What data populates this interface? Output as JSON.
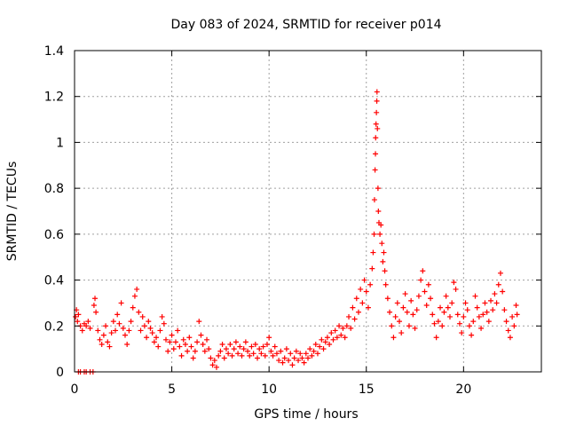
{
  "chart_data": {
    "type": "scatter",
    "title": "Day 083 of 2024, SRMTID for receiver p014",
    "xlabel": "GPS time / hours",
    "ylabel": "SRMTID / TECUs",
    "xlim": [
      0,
      24
    ],
    "ylim": [
      0,
      1.4
    ],
    "xticks": [
      0,
      5,
      10,
      15,
      20
    ],
    "xtick_labels": [
      "0",
      "5",
      "10",
      "15",
      "20"
    ],
    "yticks": [
      0,
      0.2,
      0.4,
      0.6,
      0.8,
      1.0,
      1.2,
      1.4
    ],
    "ytick_labels": [
      "0",
      "0.2",
      "0.4",
      "0.6",
      "0.8",
      "1",
      "1.2",
      "1.4"
    ],
    "grid": true,
    "marker": "+",
    "color": "#ff0000",
    "series": [
      {
        "name": "SRMTID",
        "points": [
          [
            0.05,
            0.24
          ],
          [
            0.1,
            0.27
          ],
          [
            0.15,
            0.22
          ],
          [
            0.2,
            0.25
          ],
          [
            0.3,
            0.2
          ],
          [
            0.4,
            0.18
          ],
          [
            0.5,
            0.21
          ],
          [
            0.6,
            0.2
          ],
          [
            0.7,
            0.22
          ],
          [
            0.8,
            0.19
          ],
          [
            0.2,
            0.0
          ],
          [
            0.3,
            0.0
          ],
          [
            0.5,
            0.0
          ],
          [
            0.6,
            0.0
          ],
          [
            0.8,
            0.0
          ],
          [
            0.95,
            0.0
          ],
          [
            1.0,
            0.29
          ],
          [
            1.05,
            0.32
          ],
          [
            1.1,
            0.26
          ],
          [
            1.2,
            0.18
          ],
          [
            1.3,
            0.14
          ],
          [
            1.4,
            0.12
          ],
          [
            1.5,
            0.16
          ],
          [
            1.6,
            0.2
          ],
          [
            1.7,
            0.13
          ],
          [
            1.8,
            0.11
          ],
          [
            1.9,
            0.17
          ],
          [
            2.0,
            0.22
          ],
          [
            2.1,
            0.18
          ],
          [
            2.2,
            0.25
          ],
          [
            2.3,
            0.21
          ],
          [
            2.4,
            0.3
          ],
          [
            2.5,
            0.19
          ],
          [
            2.6,
            0.16
          ],
          [
            2.7,
            0.12
          ],
          [
            2.8,
            0.18
          ],
          [
            2.9,
            0.22
          ],
          [
            3.0,
            0.28
          ],
          [
            3.1,
            0.33
          ],
          [
            3.2,
            0.36
          ],
          [
            3.3,
            0.26
          ],
          [
            3.4,
            0.18
          ],
          [
            3.5,
            0.24
          ],
          [
            3.6,
            0.2
          ],
          [
            3.7,
            0.15
          ],
          [
            3.8,
            0.22
          ],
          [
            3.9,
            0.19
          ],
          [
            4.0,
            0.17
          ],
          [
            4.1,
            0.13
          ],
          [
            4.2,
            0.15
          ],
          [
            4.3,
            0.11
          ],
          [
            4.4,
            0.18
          ],
          [
            4.5,
            0.24
          ],
          [
            4.6,
            0.21
          ],
          [
            4.7,
            0.14
          ],
          [
            4.8,
            0.09
          ],
          [
            4.9,
            0.13
          ],
          [
            5.0,
            0.16
          ],
          [
            5.1,
            0.1
          ],
          [
            5.2,
            0.13
          ],
          [
            5.3,
            0.18
          ],
          [
            5.4,
            0.11
          ],
          [
            5.5,
            0.07
          ],
          [
            5.6,
            0.14
          ],
          [
            5.7,
            0.12
          ],
          [
            5.8,
            0.09
          ],
          [
            5.9,
            0.15
          ],
          [
            6.0,
            0.11
          ],
          [
            6.1,
            0.06
          ],
          [
            6.2,
            0.09
          ],
          [
            6.3,
            0.13
          ],
          [
            6.4,
            0.22
          ],
          [
            6.5,
            0.16
          ],
          [
            6.6,
            0.12
          ],
          [
            6.7,
            0.09
          ],
          [
            6.8,
            0.14
          ],
          [
            6.9,
            0.1
          ],
          [
            7.0,
            0.06
          ],
          [
            7.1,
            0.03
          ],
          [
            7.2,
            0.05
          ],
          [
            7.3,
            0.02
          ],
          [
            7.4,
            0.07
          ],
          [
            7.5,
            0.09
          ],
          [
            7.6,
            0.12
          ],
          [
            7.7,
            0.06
          ],
          [
            7.8,
            0.1
          ],
          [
            7.9,
            0.08
          ],
          [
            8.0,
            0.12
          ],
          [
            8.1,
            0.07
          ],
          [
            8.2,
            0.1
          ],
          [
            8.3,
            0.13
          ],
          [
            8.4,
            0.08
          ],
          [
            8.5,
            0.11
          ],
          [
            8.6,
            0.07
          ],
          [
            8.7,
            0.1
          ],
          [
            8.8,
            0.13
          ],
          [
            8.9,
            0.09
          ],
          [
            9.0,
            0.07
          ],
          [
            9.1,
            0.11
          ],
          [
            9.2,
            0.08
          ],
          [
            9.3,
            0.12
          ],
          [
            9.4,
            0.06
          ],
          [
            9.5,
            0.1
          ],
          [
            9.6,
            0.08
          ],
          [
            9.7,
            0.11
          ],
          [
            9.8,
            0.07
          ],
          [
            9.9,
            0.12
          ],
          [
            10.0,
            0.15
          ],
          [
            10.1,
            0.09
          ],
          [
            10.2,
            0.07
          ],
          [
            10.3,
            0.11
          ],
          [
            10.4,
            0.08
          ],
          [
            10.5,
            0.05
          ],
          [
            10.6,
            0.09
          ],
          [
            10.7,
            0.04
          ],
          [
            10.8,
            0.06
          ],
          [
            10.9,
            0.1
          ],
          [
            11.0,
            0.05
          ],
          [
            11.1,
            0.08
          ],
          [
            11.2,
            0.03
          ],
          [
            11.3,
            0.06
          ],
          [
            11.4,
            0.09
          ],
          [
            11.5,
            0.05
          ],
          [
            11.6,
            0.08
          ],
          [
            11.7,
            0.06
          ],
          [
            11.8,
            0.04
          ],
          [
            11.9,
            0.08
          ],
          [
            12.0,
            0.06
          ],
          [
            12.1,
            0.1
          ],
          [
            12.2,
            0.07
          ],
          [
            12.3,
            0.09
          ],
          [
            12.4,
            0.12
          ],
          [
            12.5,
            0.08
          ],
          [
            12.6,
            0.11
          ],
          [
            12.7,
            0.14
          ],
          [
            12.8,
            0.1
          ],
          [
            12.9,
            0.13
          ],
          [
            13.0,
            0.15
          ],
          [
            13.1,
            0.12
          ],
          [
            13.2,
            0.17
          ],
          [
            13.3,
            0.14
          ],
          [
            13.4,
            0.18
          ],
          [
            13.5,
            0.15
          ],
          [
            13.6,
            0.2
          ],
          [
            13.7,
            0.16
          ],
          [
            13.8,
            0.19
          ],
          [
            13.9,
            0.15
          ],
          [
            14.0,
            0.2
          ],
          [
            14.1,
            0.24
          ],
          [
            14.2,
            0.19
          ],
          [
            14.3,
            0.28
          ],
          [
            14.4,
            0.23
          ],
          [
            14.5,
            0.32
          ],
          [
            14.6,
            0.26
          ],
          [
            14.7,
            0.36
          ],
          [
            14.8,
            0.3
          ],
          [
            14.9,
            0.4
          ],
          [
            15.0,
            0.35
          ],
          [
            15.1,
            0.28
          ],
          [
            15.2,
            0.38
          ],
          [
            15.3,
            0.45
          ],
          [
            15.35,
            0.52
          ],
          [
            15.4,
            0.6
          ],
          [
            15.42,
            0.75
          ],
          [
            15.45,
            0.88
          ],
          [
            15.47,
            0.95
          ],
          [
            15.48,
            1.02
          ],
          [
            15.5,
            1.08
          ],
          [
            15.52,
            1.13
          ],
          [
            15.54,
            1.18
          ],
          [
            15.55,
            1.22
          ],
          [
            15.57,
            1.06
          ],
          [
            15.6,
            0.8
          ],
          [
            15.62,
            0.7
          ],
          [
            15.65,
            0.65
          ],
          [
            15.7,
            0.6
          ],
          [
            15.75,
            0.64
          ],
          [
            15.8,
            0.56
          ],
          [
            15.85,
            0.48
          ],
          [
            15.9,
            0.52
          ],
          [
            15.95,
            0.44
          ],
          [
            16.0,
            0.38
          ],
          [
            16.1,
            0.32
          ],
          [
            16.2,
            0.26
          ],
          [
            16.3,
            0.2
          ],
          [
            16.4,
            0.15
          ],
          [
            16.5,
            0.24
          ],
          [
            16.6,
            0.3
          ],
          [
            16.7,
            0.22
          ],
          [
            16.8,
            0.17
          ],
          [
            16.9,
            0.28
          ],
          [
            17.0,
            0.34
          ],
          [
            17.1,
            0.26
          ],
          [
            17.2,
            0.2
          ],
          [
            17.3,
            0.31
          ],
          [
            17.4,
            0.25
          ],
          [
            17.5,
            0.19
          ],
          [
            17.6,
            0.27
          ],
          [
            17.7,
            0.33
          ],
          [
            17.8,
            0.4
          ],
          [
            17.9,
            0.44
          ],
          [
            18.0,
            0.35
          ],
          [
            18.1,
            0.29
          ],
          [
            18.2,
            0.38
          ],
          [
            18.3,
            0.32
          ],
          [
            18.4,
            0.25
          ],
          [
            18.5,
            0.21
          ],
          [
            18.6,
            0.15
          ],
          [
            18.7,
            0.22
          ],
          [
            18.8,
            0.28
          ],
          [
            18.9,
            0.2
          ],
          [
            19.0,
            0.26
          ],
          [
            19.1,
            0.33
          ],
          [
            19.2,
            0.28
          ],
          [
            19.3,
            0.24
          ],
          [
            19.4,
            0.3
          ],
          [
            19.5,
            0.39
          ],
          [
            19.6,
            0.36
          ],
          [
            19.7,
            0.25
          ],
          [
            19.8,
            0.21
          ],
          [
            19.9,
            0.17
          ],
          [
            20.0,
            0.24
          ],
          [
            20.1,
            0.3
          ],
          [
            20.2,
            0.27
          ],
          [
            20.3,
            0.2
          ],
          [
            20.4,
            0.16
          ],
          [
            20.5,
            0.22
          ],
          [
            20.6,
            0.33
          ],
          [
            20.7,
            0.28
          ],
          [
            20.8,
            0.24
          ],
          [
            20.9,
            0.19
          ],
          [
            21.0,
            0.25
          ],
          [
            21.1,
            0.3
          ],
          [
            21.2,
            0.26
          ],
          [
            21.3,
            0.22
          ],
          [
            21.4,
            0.31
          ],
          [
            21.5,
            0.27
          ],
          [
            21.6,
            0.34
          ],
          [
            21.7,
            0.3
          ],
          [
            21.8,
            0.38
          ],
          [
            21.9,
            0.43
          ],
          [
            22.0,
            0.35
          ],
          [
            22.1,
            0.27
          ],
          [
            22.2,
            0.22
          ],
          [
            22.3,
            0.18
          ],
          [
            22.4,
            0.15
          ],
          [
            22.5,
            0.24
          ],
          [
            22.6,
            0.2
          ],
          [
            22.7,
            0.29
          ],
          [
            22.75,
            0.25
          ]
        ]
      }
    ]
  }
}
